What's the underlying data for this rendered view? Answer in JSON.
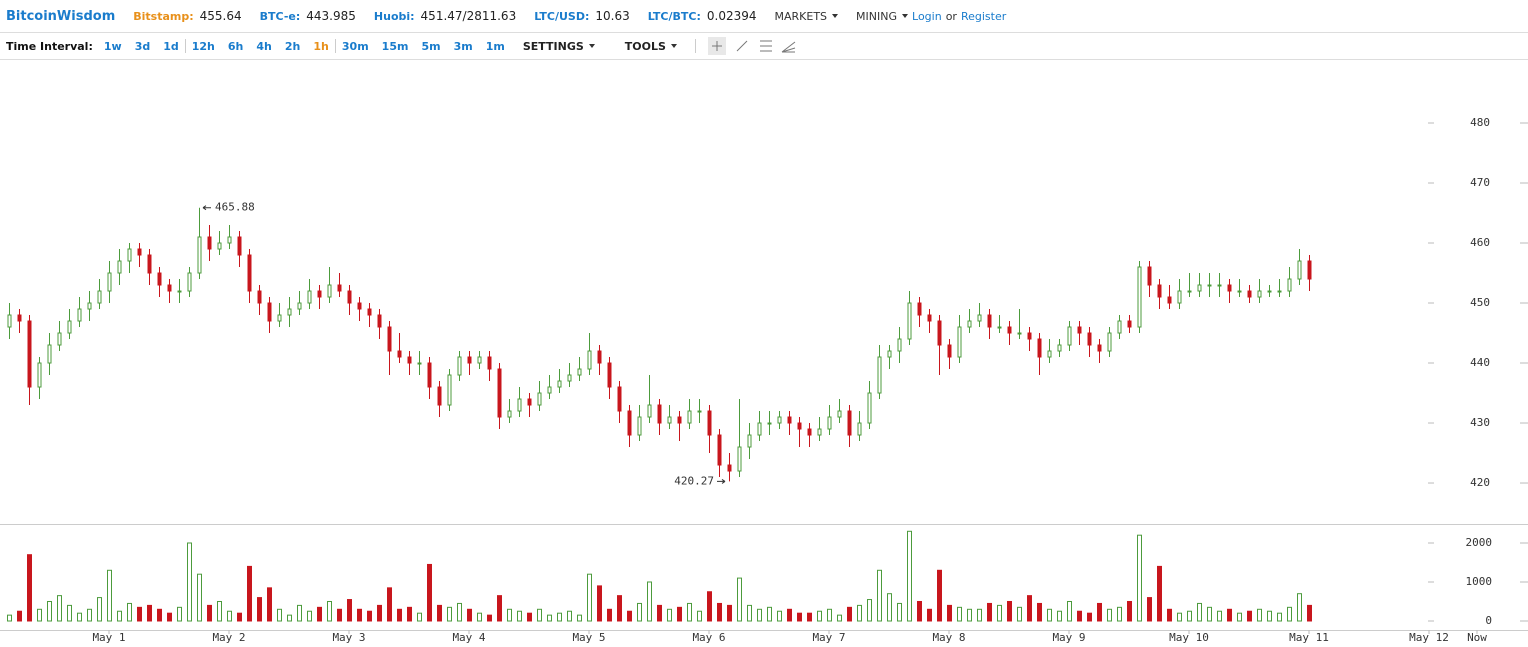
{
  "header": {
    "brand": "BitcoinWisdom",
    "quotes": [
      {
        "label": "Bitstamp:",
        "value": "455.64"
      },
      {
        "label": "BTC-e:",
        "value": "443.985"
      },
      {
        "label": "Huobi:",
        "value": "451.47/2811.63"
      },
      {
        "label": "LTC/USD:",
        "value": "10.63"
      },
      {
        "label": "LTC/BTC:",
        "value": "0.02394"
      }
    ],
    "menus": [
      "MARKETS",
      "MINING"
    ],
    "login": "Login",
    "or": "or",
    "register": "Register"
  },
  "toolbar": {
    "label": "Time Interval:",
    "intervals": [
      [
        "1w",
        "3d",
        "1d"
      ],
      [
        "12h",
        "6h",
        "4h",
        "2h",
        "1h"
      ],
      [
        "30m",
        "15m",
        "5m",
        "3m",
        "1m"
      ]
    ],
    "active": "1h",
    "menus": [
      "SETTINGS",
      "TOOLS"
    ]
  },
  "chart_data": {
    "type": "candlestick",
    "up_color": "#4c9b3c",
    "down_color": "#c8161d",
    "xlim": [
      -0.9,
      151.9
    ],
    "xticks": [
      {
        "value": 10,
        "label": "May 1"
      },
      {
        "value": 22,
        "label": "May 2"
      },
      {
        "value": 34,
        "label": "May 3"
      },
      {
        "value": 46,
        "label": "May 4"
      },
      {
        "value": 58,
        "label": "May 5"
      },
      {
        "value": 70,
        "label": "May 6"
      },
      {
        "value": 82,
        "label": "May 7"
      },
      {
        "value": 94,
        "label": "May 8"
      },
      {
        "value": 106,
        "label": "May 9"
      },
      {
        "value": 118,
        "label": "May 10"
      },
      {
        "value": 130,
        "label": "May 11"
      },
      {
        "value": 142,
        "label": "May 12"
      },
      {
        "value": 146.8,
        "label": "Now"
      }
    ],
    "ylim": [
      413.17,
      490.5
    ],
    "yticks": [
      420,
      430,
      440,
      450,
      460,
      470,
      480
    ],
    "volume_ylim": [
      -231,
      2487
    ],
    "volume_ticks": [
      0,
      1000,
      2000
    ],
    "ohlc": [
      [
        446,
        450,
        444,
        448
      ],
      [
        448,
        449,
        445,
        447
      ],
      [
        447,
        448,
        433,
        436
      ],
      [
        436,
        441,
        434,
        440
      ],
      [
        440,
        445,
        438,
        443
      ],
      [
        443,
        447,
        442,
        445
      ],
      [
        445,
        449,
        444,
        447
      ],
      [
        447,
        451,
        446,
        449
      ],
      [
        449,
        452,
        447,
        450
      ],
      [
        450,
        454,
        449,
        452
      ],
      [
        452,
        457,
        450,
        455
      ],
      [
        455,
        459,
        453,
        457
      ],
      [
        457,
        460,
        455,
        459
      ],
      [
        459,
        460,
        456,
        458
      ],
      [
        458,
        459,
        453,
        455
      ],
      [
        455,
        456,
        451,
        453
      ],
      [
        453,
        454,
        450,
        452
      ],
      [
        452,
        454,
        450,
        452
      ],
      [
        452,
        456,
        451,
        455
      ],
      [
        455,
        465.88,
        454,
        461
      ],
      [
        461,
        463,
        457,
        459
      ],
      [
        459,
        462,
        458,
        460
      ],
      [
        460,
        463,
        459,
        461
      ],
      [
        461,
        462,
        456,
        458
      ],
      [
        458,
        459,
        450,
        452
      ],
      [
        452,
        453,
        448,
        450
      ],
      [
        450,
        451,
        445,
        447
      ],
      [
        447,
        450,
        446,
        448
      ],
      [
        448,
        451,
        446,
        449
      ],
      [
        449,
        452,
        448,
        450
      ],
      [
        450,
        454,
        449,
        452
      ],
      [
        452,
        453,
        449,
        451
      ],
      [
        451,
        456,
        450,
        453
      ],
      [
        453,
        455,
        451,
        452
      ],
      [
        452,
        453,
        448,
        450
      ],
      [
        450,
        451,
        447,
        449
      ],
      [
        449,
        450,
        446,
        448
      ],
      [
        448,
        449,
        444,
        446
      ],
      [
        446,
        447,
        438,
        442
      ],
      [
        442,
        445,
        440,
        441
      ],
      [
        441,
        442,
        438,
        440
      ],
      [
        440,
        442,
        438,
        440
      ],
      [
        440,
        441,
        434,
        436
      ],
      [
        436,
        437,
        431,
        433
      ],
      [
        433,
        439,
        432,
        438
      ],
      [
        438,
        442,
        437,
        441
      ],
      [
        441,
        442,
        438,
        440
      ],
      [
        440,
        442,
        439,
        441
      ],
      [
        441,
        442,
        437,
        439
      ],
      [
        439,
        440,
        429,
        431
      ],
      [
        431,
        434,
        430,
        432
      ],
      [
        432,
        436,
        431,
        434
      ],
      [
        434,
        435,
        431,
        433
      ],
      [
        433,
        437,
        432,
        435
      ],
      [
        435,
        438,
        434,
        436
      ],
      [
        436,
        439,
        435,
        437
      ],
      [
        437,
        440,
        436,
        438
      ],
      [
        438,
        441,
        437,
        439
      ],
      [
        439,
        445,
        438,
        442
      ],
      [
        442,
        443,
        438,
        440
      ],
      [
        440,
        441,
        434,
        436
      ],
      [
        436,
        437,
        430,
        432
      ],
      [
        432,
        433,
        426,
        428
      ],
      [
        428,
        433,
        427,
        431
      ],
      [
        431,
        438,
        430,
        433
      ],
      [
        433,
        434,
        428,
        430
      ],
      [
        430,
        433,
        429,
        431
      ],
      [
        431,
        432,
        427,
        430
      ],
      [
        430,
        434,
        429,
        432
      ],
      [
        432,
        434,
        430,
        432
      ],
      [
        432,
        433,
        425,
        428
      ],
      [
        428,
        429,
        421,
        423
      ],
      [
        423,
        425,
        420.27,
        422
      ],
      [
        422,
        434,
        421,
        426
      ],
      [
        426,
        430,
        424,
        428
      ],
      [
        428,
        432,
        427,
        430
      ],
      [
        430,
        432,
        428,
        430
      ],
      [
        430,
        432,
        429,
        431
      ],
      [
        431,
        432,
        428,
        430
      ],
      [
        430,
        431,
        426,
        429
      ],
      [
        429,
        430,
        426,
        428
      ],
      [
        428,
        431,
        427,
        429
      ],
      [
        429,
        433,
        428,
        431
      ],
      [
        431,
        434,
        430,
        432
      ],
      [
        432,
        433,
        426,
        428
      ],
      [
        428,
        432,
        427,
        430
      ],
      [
        430,
        437,
        429,
        435
      ],
      [
        435,
        443,
        434,
        441
      ],
      [
        441,
        443,
        439,
        442
      ],
      [
        442,
        446,
        440,
        444
      ],
      [
        444,
        452,
        443,
        450
      ],
      [
        450,
        451,
        446,
        448
      ],
      [
        448,
        449,
        445,
        447
      ],
      [
        447,
        448,
        438,
        443
      ],
      [
        443,
        444,
        439,
        441
      ],
      [
        441,
        448,
        440,
        446
      ],
      [
        446,
        449,
        445,
        447
      ],
      [
        447,
        450,
        446,
        448
      ],
      [
        448,
        449,
        444,
        446
      ],
      [
        446,
        448,
        445,
        446
      ],
      [
        446,
        447,
        443,
        445
      ],
      [
        445,
        449,
        444,
        445
      ],
      [
        445,
        446,
        442,
        444
      ],
      [
        444,
        445,
        438,
        441
      ],
      [
        441,
        444,
        440,
        442
      ],
      [
        442,
        444,
        441,
        443
      ],
      [
        443,
        447,
        442,
        446
      ],
      [
        446,
        447,
        443,
        445
      ],
      [
        445,
        446,
        441,
        443
      ],
      [
        443,
        444,
        440,
        442
      ],
      [
        442,
        446,
        441,
        445
      ],
      [
        445,
        448,
        444,
        447
      ],
      [
        447,
        448,
        445,
        446
      ],
      [
        446,
        457,
        445,
        456
      ],
      [
        456,
        457,
        451,
        453
      ],
      [
        453,
        454,
        449,
        451
      ],
      [
        451,
        453,
        449,
        450
      ],
      [
        450,
        454,
        449,
        452
      ],
      [
        452,
        455,
        451,
        452
      ],
      [
        452,
        455,
        451,
        453
      ],
      [
        453,
        455,
        451,
        453
      ],
      [
        453,
        455,
        451,
        453
      ],
      [
        453,
        454,
        450,
        452
      ],
      [
        452,
        454,
        451,
        452
      ],
      [
        452,
        453,
        450,
        451
      ],
      [
        451,
        454,
        450,
        452
      ],
      [
        452,
        453,
        451,
        452
      ],
      [
        452,
        454,
        451,
        452
      ],
      [
        452,
        456,
        451,
        454
      ],
      [
        454,
        459,
        453,
        457
      ],
      [
        457,
        458,
        452,
        454
      ]
    ],
    "volumes": [
      150,
      250,
      1700,
      300,
      500,
      650,
      400,
      200,
      300,
      600,
      1300,
      250,
      450,
      350,
      400,
      300,
      200,
      350,
      2000,
      1200,
      400,
      500,
      250,
      200,
      1400,
      600,
      850,
      300,
      150,
      400,
      250,
      350,
      500,
      300,
      550,
      300,
      250,
      400,
      850,
      300,
      350,
      200,
      1450,
      400,
      350,
      450,
      300,
      200,
      150,
      650,
      300,
      250,
      200,
      300,
      150,
      200,
      250,
      150,
      1200,
      900,
      300,
      650,
      250,
      450,
      1000,
      400,
      300,
      350,
      450,
      250,
      750,
      450,
      400,
      1100,
      400,
      300,
      350,
      250,
      300,
      200,
      200,
      250,
      300,
      150,
      350,
      400,
      550,
      1300,
      700,
      450,
      2300,
      500,
      300,
      1300,
      400,
      350,
      300,
      300,
      450,
      400,
      500,
      350,
      650,
      450,
      300,
      250,
      500,
      250,
      200,
      450,
      300,
      350,
      500,
      2200,
      600,
      1400,
      300,
      200,
      250,
      450,
      350,
      250,
      300,
      200,
      250,
      300,
      250,
      200,
      350,
      700,
      400
    ],
    "high_label_index": 19,
    "low_label_index": 72
  }
}
